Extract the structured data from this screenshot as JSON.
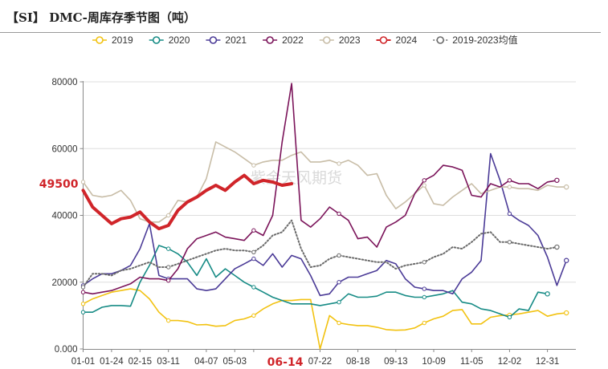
{
  "title": "【SI】 DMC-周库存季节图（吨）",
  "watermark": "紫金天风期货",
  "chart_data": {
    "type": "line",
    "title": "【SI】 DMC-周库存季节图（吨）",
    "xlabel": "",
    "ylabel": "",
    "ylim": [
      0,
      80000
    ],
    "y_ticks": [
      0,
      20000,
      40000,
      60000,
      80000
    ],
    "y_tick_labels": [
      "0.000",
      "20000",
      "40000",
      "60000",
      "80000"
    ],
    "x_tick_labels": [
      "01-01",
      "01-24",
      "02-15",
      "03-11",
      "04-07",
      "05-03",
      "",
      "07-22",
      "08-18",
      "09-13",
      "10-09",
      "11-05",
      "12-02",
      "12-31"
    ],
    "x_tick_weeks": [
      0,
      3,
      6,
      9,
      13,
      16,
      18,
      25,
      29,
      33,
      37,
      41,
      45,
      49
    ],
    "highlight_x_label": "06-14",
    "highlight_x_week": 22,
    "highlight_value_label": "49500",
    "highlight_value": 49500,
    "legend_position": "top",
    "series": [
      {
        "name": "2019",
        "color": "#f2c211",
        "style": "solid",
        "values": [
          13500,
          15000,
          16000,
          17000,
          17500,
          18000,
          17500,
          15000,
          11000,
          8500,
          8500,
          8200,
          7200,
          7300,
          6800,
          7000,
          8500,
          9000,
          10000,
          12000,
          13500,
          14500,
          14500,
          14800,
          14800,
          0,
          10000,
          7800,
          7300,
          7000,
          7000,
          6500,
          5800,
          5600,
          5700,
          6300,
          7800,
          9000,
          9800,
          11500,
          11800,
          7500,
          7500,
          9500,
          10000,
          10200,
          10500,
          11000,
          11500,
          9800,
          10500,
          10800
        ]
      },
      {
        "name": "2020",
        "color": "#168b85",
        "style": "solid",
        "values": [
          11000,
          11000,
          12500,
          13000,
          13000,
          12800,
          20000,
          25000,
          31000,
          30000,
          28500,
          26000,
          22000,
          27000,
          21500,
          24000,
          22000,
          20000,
          18500,
          17000,
          15500,
          14500,
          13500,
          13500,
          13500,
          13000,
          13500,
          14000,
          16500,
          15500,
          15500,
          15800,
          17000,
          17000,
          16000,
          15500,
          15500,
          16000,
          16500,
          17500,
          14000,
          13500,
          12000,
          11500,
          10500,
          9500,
          12000,
          11500,
          17000,
          16500
        ]
      },
      {
        "name": "2021",
        "color": "#4b3b97",
        "style": "solid",
        "values": [
          19000,
          21000,
          22500,
          22500,
          23500,
          25000,
          30000,
          37500,
          22000,
          21000,
          21000,
          21000,
          18000,
          17500,
          18000,
          21000,
          24000,
          25500,
          27000,
          25000,
          28500,
          24500,
          28000,
          27000,
          22000,
          16000,
          16500,
          20000,
          21500,
          21500,
          22500,
          23500,
          26500,
          25500,
          21000,
          18500,
          18000,
          17500,
          17500,
          16500,
          21000,
          23000,
          26500,
          58500,
          50500,
          40500,
          38500,
          37000,
          34000,
          27500,
          19000,
          26500
        ]
      },
      {
        "name": "2022",
        "color": "#7b145a",
        "style": "solid",
        "values": [
          17000,
          16500,
          17000,
          17500,
          18500,
          19500,
          21500,
          21000,
          21000,
          20500,
          24000,
          30000,
          33000,
          34000,
          35000,
          33500,
          33000,
          32500,
          35500,
          34000,
          40000,
          62000,
          79500,
          38500,
          36500,
          39000,
          42500,
          40500,
          38500,
          33000,
          33500,
          30500,
          36500,
          38000,
          40000,
          46500,
          50500,
          52000,
          55000,
          54500,
          53500,
          46000,
          45500,
          49500,
          48500,
          50500,
          49500,
          49500,
          48000,
          50000,
          50500
        ]
      },
      {
        "name": "2023",
        "color": "#c8bda7",
        "style": "solid",
        "values": [
          50000,
          46000,
          45500,
          46000,
          47500,
          44500,
          39000,
          38000,
          38000,
          40000,
          44500,
          44000,
          45500,
          51000,
          62000,
          60500,
          59000,
          57000,
          55000,
          56000,
          56500,
          56500,
          58000,
          59000,
          56000,
          56000,
          56500,
          55500,
          56500,
          55000,
          52000,
          52500,
          46000,
          42000,
          44000,
          46500,
          49000,
          43500,
          43000,
          45500,
          47500,
          49500,
          46500,
          47500,
          48500,
          48500,
          48000,
          48000,
          47500,
          49000,
          48500,
          48500
        ]
      },
      {
        "name": "2024",
        "color": "#d0252a",
        "style": "bold",
        "values": [
          47500,
          42500,
          40000,
          37500,
          39000,
          39500,
          41000,
          38000,
          36000,
          37000,
          41500,
          44000,
          45500,
          47500,
          49000,
          47500,
          50000,
          52000,
          49500,
          50500,
          50000,
          49000,
          49500
        ]
      },
      {
        "name": "2019-2023均值",
        "color": "#6b6b6b",
        "style": "dotted",
        "values": [
          18500,
          22500,
          22500,
          22000,
          23500,
          24000,
          25000,
          26000,
          24500,
          24500,
          25500,
          26500,
          27500,
          28500,
          29500,
          30000,
          29500,
          29500,
          29000,
          31000,
          34000,
          35000,
          38500,
          30000,
          24500,
          25000,
          27000,
          28000,
          27500,
          27000,
          26500,
          26000,
          26000,
          24000,
          25000,
          25500,
          26000,
          27500,
          28500,
          30500,
          30000,
          32000,
          34500,
          35000,
          32000,
          32000,
          31500,
          31000,
          30500,
          30000,
          30500
        ]
      }
    ]
  }
}
